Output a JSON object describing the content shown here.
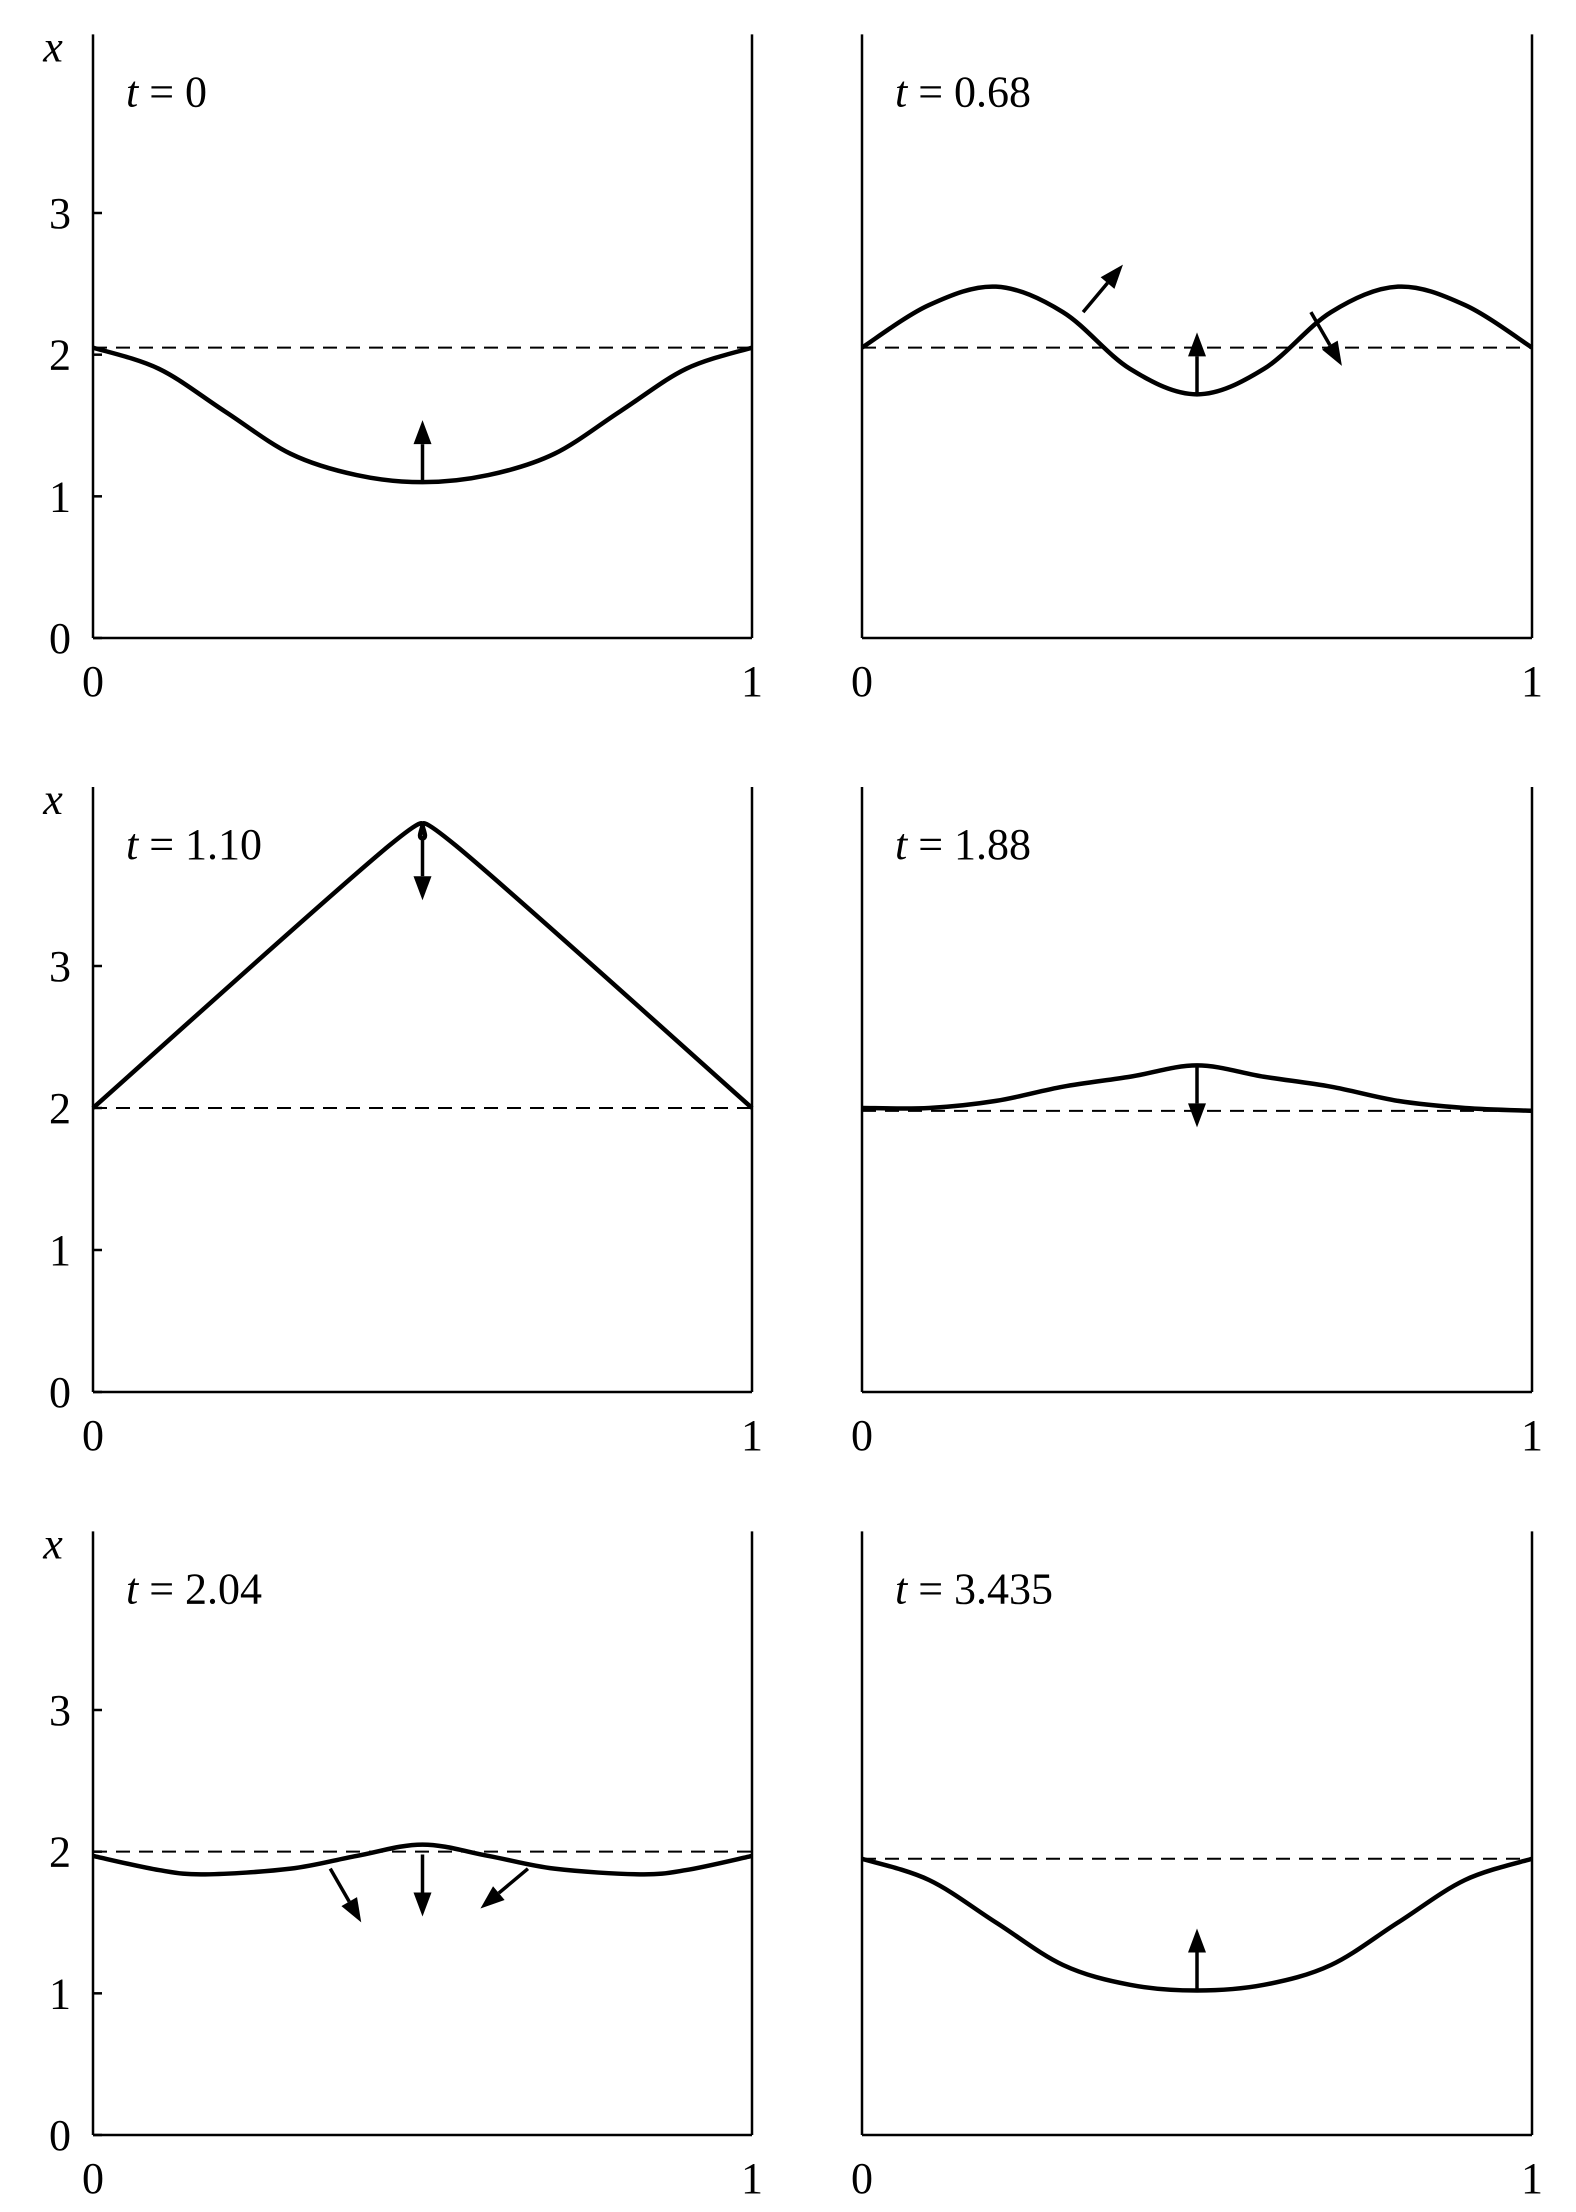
{
  "chart_data": [
    {
      "type": "line",
      "title": "t = 0",
      "t_label": "t",
      "t_value": "0",
      "ylabel": "x",
      "xlim": [
        0,
        1
      ],
      "ylim": [
        0,
        4
      ],
      "x_ticks": [
        "0",
        "1"
      ],
      "y_ticks": [
        "0",
        "1",
        "2",
        "3"
      ],
      "show_yticks": true,
      "baseline": 2.05,
      "series": [
        {
          "x": [
            0,
            0.1,
            0.2,
            0.3,
            0.4,
            0.5,
            0.6,
            0.7,
            0.8,
            0.9,
            1.0
          ],
          "y": [
            2.05,
            1.9,
            1.6,
            1.3,
            1.15,
            1.1,
            1.15,
            1.3,
            1.6,
            1.9,
            2.05
          ]
        }
      ],
      "arrows": [
        {
          "x": 0.5,
          "y": 1.1,
          "direction": "up"
        }
      ]
    },
    {
      "type": "line",
      "title": "t = 0.68",
      "t_label": "t",
      "t_value": "0.68",
      "ylabel": "",
      "xlim": [
        0,
        1
      ],
      "ylim": [
        0,
        4
      ],
      "x_ticks": [
        "0",
        "1"
      ],
      "y_ticks": [],
      "show_yticks": false,
      "baseline": 2.05,
      "series": [
        {
          "x": [
            0,
            0.1,
            0.2,
            0.3,
            0.4,
            0.5,
            0.6,
            0.7,
            0.8,
            0.9,
            1.0
          ],
          "y": [
            2.05,
            2.35,
            2.48,
            2.3,
            1.9,
            1.72,
            1.9,
            2.3,
            2.48,
            2.35,
            2.05
          ]
        }
      ],
      "arrows": [
        {
          "x": 0.33,
          "y": 2.3,
          "direction": "up-right"
        },
        {
          "x": 0.5,
          "y": 1.72,
          "direction": "up"
        },
        {
          "x": 0.67,
          "y": 2.3,
          "direction": "down-right"
        }
      ]
    },
    {
      "type": "line",
      "title": "t = 1.10",
      "t_label": "t",
      "t_value": "1.10",
      "ylabel": "x",
      "xlim": [
        0,
        1
      ],
      "ylim": [
        0,
        4
      ],
      "x_ticks": [
        "0",
        "1"
      ],
      "y_ticks": [
        "0",
        "1",
        "2",
        "3"
      ],
      "show_yticks": true,
      "baseline": 2.0,
      "series": [
        {
          "x": [
            0,
            0.45,
            0.5,
            0.55,
            1.0
          ],
          "y": [
            2.0,
            3.85,
            3.9,
            3.85,
            2.0
          ]
        }
      ],
      "arrows": [
        {
          "x": 0.5,
          "y": 3.9,
          "direction": "down"
        }
      ]
    },
    {
      "type": "line",
      "title": "t = 1.88",
      "t_label": "t",
      "t_value": "1.88",
      "ylabel": "",
      "xlim": [
        0,
        1
      ],
      "ylim": [
        0,
        4
      ],
      "x_ticks": [
        "0",
        "1"
      ],
      "y_ticks": [],
      "show_yticks": false,
      "baseline": 1.98,
      "series": [
        {
          "x": [
            0,
            0.1,
            0.2,
            0.3,
            0.4,
            0.5,
            0.6,
            0.7,
            0.8,
            0.9,
            1.0
          ],
          "y": [
            2.0,
            2.0,
            2.05,
            2.15,
            2.22,
            2.3,
            2.22,
            2.15,
            2.05,
            2.0,
            1.98
          ]
        }
      ],
      "arrows": [
        {
          "x": 0.5,
          "y": 2.3,
          "direction": "down"
        }
      ]
    },
    {
      "type": "line",
      "title": "t = 2.04",
      "t_label": "t",
      "t_value": "2.04",
      "ylabel": "x",
      "xlim": [
        0,
        1
      ],
      "ylim": [
        0,
        4
      ],
      "x_ticks": [
        "0",
        "1"
      ],
      "y_ticks": [
        "0",
        "1",
        "2",
        "3"
      ],
      "show_yticks": true,
      "baseline": 2.0,
      "series": [
        {
          "x": [
            0,
            0.1,
            0.17,
            0.3,
            0.4,
            0.5,
            0.6,
            0.7,
            0.83,
            0.9,
            1.0
          ],
          "y": [
            1.97,
            1.87,
            1.84,
            1.88,
            1.97,
            2.05,
            1.97,
            1.88,
            1.84,
            1.87,
            1.97
          ]
        }
      ],
      "arrows": [
        {
          "x": 0.36,
          "y": 1.88,
          "direction": "down-right"
        },
        {
          "x": 0.5,
          "y": 1.98,
          "direction": "down"
        },
        {
          "x": 0.66,
          "y": 1.88,
          "direction": "down-left"
        }
      ]
    },
    {
      "type": "line",
      "title": "t = 3.435",
      "t_label": "t",
      "t_value": "3.435",
      "ylabel": "",
      "xlim": [
        0,
        1
      ],
      "ylim": [
        0,
        4
      ],
      "x_ticks": [
        "0",
        "1"
      ],
      "y_ticks": [],
      "show_yticks": false,
      "baseline": 1.95,
      "series": [
        {
          "x": [
            0,
            0.1,
            0.2,
            0.3,
            0.4,
            0.5,
            0.6,
            0.7,
            0.8,
            0.9,
            1.0
          ],
          "y": [
            1.95,
            1.8,
            1.5,
            1.2,
            1.06,
            1.02,
            1.06,
            1.2,
            1.5,
            1.8,
            1.95
          ]
        }
      ],
      "arrows": [
        {
          "x": 0.5,
          "y": 1.02,
          "direction": "up"
        }
      ]
    }
  ]
}
